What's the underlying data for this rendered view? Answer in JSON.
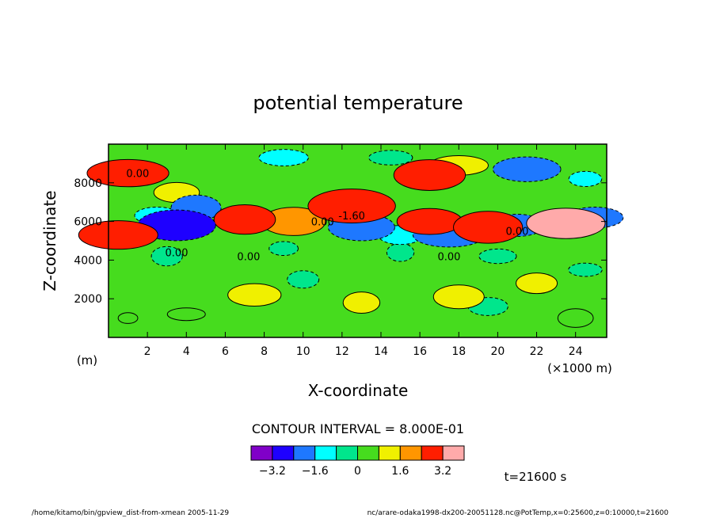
{
  "chart_data": {
    "type": "heatmap",
    "title": "potential temperature",
    "xlabel": "X-coordinate",
    "ylabel": "Z-coordinate",
    "x_unit_label": "(m)",
    "x_scale_label": "(×1000 m)",
    "xlim": [
      0,
      25.6
    ],
    "ylim": [
      0,
      10000
    ],
    "x_ticks": [
      2,
      4,
      6,
      8,
      10,
      12,
      14,
      16,
      18,
      20,
      22,
      24
    ],
    "y_ticks": [
      2000,
      4000,
      6000,
      8000
    ],
    "contour_interval_text": "CONTOUR INTERVAL = 8.000E-01",
    "contour_labels": [
      "0.00",
      "-1.60",
      "0.00",
      "0.00",
      "0.00",
      "0.00",
      "0.00"
    ],
    "colorbar": {
      "colors": [
        "#8000c8",
        "#1e00ff",
        "#1e78ff",
        "#00ffff",
        "#00e68c",
        "#46dc1e",
        "#f0f000",
        "#ff9600",
        "#ff1e00",
        "#ffaaaa"
      ],
      "tick_labels": [
        "-3.2",
        "-1.6",
        "0",
        "1.6",
        "3.2"
      ],
      "tick_values": [
        -3.2,
        -1.6,
        0,
        1.6,
        3.2
      ],
      "min": -4.0,
      "max": 4.0
    },
    "time_label": "t=21600  s",
    "grid": false,
    "regions": [
      {
        "x": 1.0,
        "z": 8500,
        "value": 2.8
      },
      {
        "x": 3.5,
        "z": 7500,
        "value": 0.9
      },
      {
        "x": 4.5,
        "z": 6700,
        "value": -1.8
      },
      {
        "x": 2.5,
        "z": 6300,
        "value": -1.2
      },
      {
        "x": 0.5,
        "z": 5300,
        "value": 3.0
      },
      {
        "x": 3.5,
        "z": 5800,
        "value": -2.6
      },
      {
        "x": 7.0,
        "z": 6100,
        "value": 2.4
      },
      {
        "x": 9.5,
        "z": 6000,
        "value": 2.2
      },
      {
        "x": 12.5,
        "z": 6800,
        "value": 3.1
      },
      {
        "x": 13.0,
        "z": 5700,
        "value": -2.0
      },
      {
        "x": 15.0,
        "z": 5300,
        "value": -1.5
      },
      {
        "x": 16.5,
        "z": 6000,
        "value": 2.6
      },
      {
        "x": 17.5,
        "z": 5300,
        "value": -2.3
      },
      {
        "x": 19.5,
        "z": 5700,
        "value": 2.8
      },
      {
        "x": 21.0,
        "z": 5800,
        "value": -2.0
      },
      {
        "x": 23.5,
        "z": 5900,
        "value": 3.3
      },
      {
        "x": 25.0,
        "z": 6200,
        "value": -1.8
      },
      {
        "x": 16.5,
        "z": 8400,
        "value": 2.6
      },
      {
        "x": 18.0,
        "z": 8900,
        "value": 1.6
      },
      {
        "x": 21.5,
        "z": 8700,
        "value": -2.4
      },
      {
        "x": 24.5,
        "z": 8200,
        "value": -0.9
      },
      {
        "x": 9.0,
        "z": 9300,
        "value": -1.1
      },
      {
        "x": 14.5,
        "z": 9300,
        "value": -0.8
      },
      {
        "x": 3.0,
        "z": 4200,
        "value": -0.8
      },
      {
        "x": 9.0,
        "z": 4600,
        "value": -0.7
      },
      {
        "x": 15.0,
        "z": 4400,
        "value": -0.6
      },
      {
        "x": 20.0,
        "z": 4200,
        "value": -0.8
      },
      {
        "x": 24.5,
        "z": 3500,
        "value": -0.6
      },
      {
        "x": 7.5,
        "z": 2200,
        "value": 1.3
      },
      {
        "x": 13.0,
        "z": 1800,
        "value": 1.1
      },
      {
        "x": 18.0,
        "z": 2100,
        "value": 1.5
      },
      {
        "x": 22.0,
        "z": 2800,
        "value": 1.0
      },
      {
        "x": 10.0,
        "z": 3000,
        "value": -0.5
      },
      {
        "x": 1.0,
        "z": 1000,
        "value": 0.2
      },
      {
        "x": 4.0,
        "z": 1200,
        "value": 0.5
      },
      {
        "x": 24.0,
        "z": 1000,
        "value": 0.7
      },
      {
        "x": 19.5,
        "z": 1600,
        "value": -0.6
      }
    ]
  },
  "footer": {
    "left": "/home/kitamo/bin/gpview_dist-from-xmean  2005-11-29",
    "right": "nc/arare-odaka1998-dx200-20051128.nc@PotTemp,x=0:25600,z=0:10000,t=21600"
  }
}
